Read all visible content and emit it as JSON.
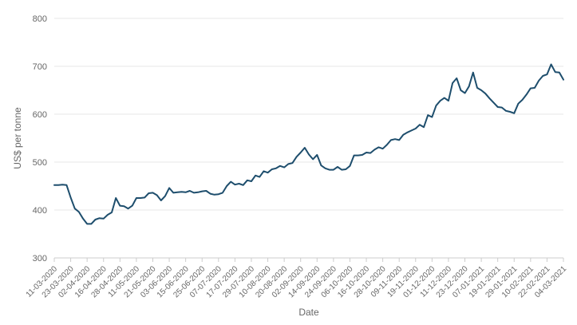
{
  "page": {
    "background": "#ffffff"
  },
  "chart_data": {
    "type": "line",
    "title": "",
    "xlabel": "Date",
    "ylabel": "US$ per tonne",
    "ylim": [
      300,
      800
    ],
    "y_ticks": [
      300,
      400,
      500,
      600,
      700,
      800
    ],
    "grid": "horizontal",
    "legend": "none",
    "x_tick_labels": [
      "11-03-2020",
      "23-03-2020",
      "02-04-2020",
      "16-04-2020",
      "28-04-2020",
      "11-05-2020",
      "21-05-2020",
      "03-06-2020",
      "15-06-2020",
      "25-06-2020",
      "07-07-2020",
      "17-07-2020",
      "29-07-2020",
      "10-08-2020",
      "20-08-2020",
      "02-09-2020",
      "14-09-2020",
      "24-09-2020",
      "06-10-2020",
      "16-10-2020",
      "28-10-2020",
      "09-11-2020",
      "19-11-2020",
      "01-12-2020",
      "11-12-2020",
      "23-12-2020",
      "07-01-2021",
      "19-01-2021",
      "29-01-2021",
      "10-02-2021",
      "22-02-2021",
      "04-03-2021"
    ],
    "points_per_tick_interval": 4,
    "series": [
      {
        "name": "US$ per tonne",
        "values": [
          452,
          452,
          453,
          452,
          426,
          403,
          396,
          382,
          371,
          371,
          380,
          383,
          382,
          390,
          395,
          425,
          409,
          408,
          403,
          409,
          425,
          425,
          426,
          435,
          436,
          431,
          420,
          429,
          446,
          436,
          437,
          438,
          437,
          440,
          436,
          437,
          439,
          440,
          434,
          432,
          433,
          436,
          450,
          459,
          453,
          455,
          452,
          462,
          460,
          472,
          469,
          481,
          478,
          485,
          487,
          492,
          489,
          496,
          498,
          511,
          520,
          530,
          516,
          506,
          515,
          493,
          487,
          484,
          484,
          490,
          484,
          485,
          492,
          514,
          514,
          515,
          520,
          519,
          526,
          531,
          528,
          536,
          546,
          548,
          546,
          557,
          562,
          566,
          570,
          578,
          573,
          598,
          594,
          618,
          628,
          634,
          628,
          665,
          675,
          650,
          644,
          658,
          687,
          655,
          650,
          643,
          633,
          624,
          615,
          614,
          607,
          605,
          602,
          622,
          630,
          641,
          654,
          655,
          670,
          680,
          683,
          704,
          688,
          687,
          672
        ]
      }
    ]
  },
  "style": {
    "line_color": "#1e4e6d",
    "grid_color": "#e7e7e7",
    "axis_color": "#cccccc",
    "label_color": "#666666"
  }
}
